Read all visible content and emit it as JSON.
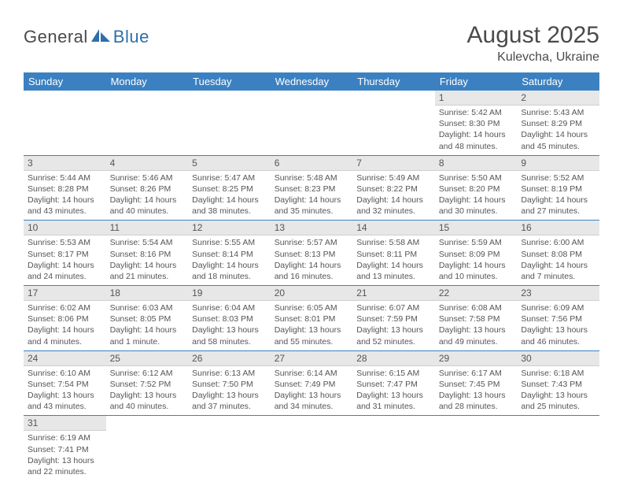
{
  "logo": {
    "part1": "General",
    "part2": "Blue"
  },
  "title": "August 2025",
  "location": "Kulevcha, Ukraine",
  "colors": {
    "header_bg": "#3b81c2",
    "header_fg": "#ffffff",
    "daynum_bg": "#e7e7e7",
    "cell_border": "#3b81c2",
    "text": "#555555",
    "logo_gray": "#4a4a4a",
    "logo_blue": "#2f6fa8"
  },
  "weekdays": [
    "Sunday",
    "Monday",
    "Tuesday",
    "Wednesday",
    "Thursday",
    "Friday",
    "Saturday"
  ],
  "weeks": [
    [
      {
        "empty": true
      },
      {
        "empty": true
      },
      {
        "empty": true
      },
      {
        "empty": true
      },
      {
        "empty": true
      },
      {
        "day": "1",
        "sunrise": "Sunrise: 5:42 AM",
        "sunset": "Sunset: 8:30 PM",
        "daylight": "Daylight: 14 hours and 48 minutes."
      },
      {
        "day": "2",
        "sunrise": "Sunrise: 5:43 AM",
        "sunset": "Sunset: 8:29 PM",
        "daylight": "Daylight: 14 hours and 45 minutes."
      }
    ],
    [
      {
        "day": "3",
        "sunrise": "Sunrise: 5:44 AM",
        "sunset": "Sunset: 8:28 PM",
        "daylight": "Daylight: 14 hours and 43 minutes."
      },
      {
        "day": "4",
        "sunrise": "Sunrise: 5:46 AM",
        "sunset": "Sunset: 8:26 PM",
        "daylight": "Daylight: 14 hours and 40 minutes."
      },
      {
        "day": "5",
        "sunrise": "Sunrise: 5:47 AM",
        "sunset": "Sunset: 8:25 PM",
        "daylight": "Daylight: 14 hours and 38 minutes."
      },
      {
        "day": "6",
        "sunrise": "Sunrise: 5:48 AM",
        "sunset": "Sunset: 8:23 PM",
        "daylight": "Daylight: 14 hours and 35 minutes."
      },
      {
        "day": "7",
        "sunrise": "Sunrise: 5:49 AM",
        "sunset": "Sunset: 8:22 PM",
        "daylight": "Daylight: 14 hours and 32 minutes."
      },
      {
        "day": "8",
        "sunrise": "Sunrise: 5:50 AM",
        "sunset": "Sunset: 8:20 PM",
        "daylight": "Daylight: 14 hours and 30 minutes."
      },
      {
        "day": "9",
        "sunrise": "Sunrise: 5:52 AM",
        "sunset": "Sunset: 8:19 PM",
        "daylight": "Daylight: 14 hours and 27 minutes."
      }
    ],
    [
      {
        "day": "10",
        "sunrise": "Sunrise: 5:53 AM",
        "sunset": "Sunset: 8:17 PM",
        "daylight": "Daylight: 14 hours and 24 minutes."
      },
      {
        "day": "11",
        "sunrise": "Sunrise: 5:54 AM",
        "sunset": "Sunset: 8:16 PM",
        "daylight": "Daylight: 14 hours and 21 minutes."
      },
      {
        "day": "12",
        "sunrise": "Sunrise: 5:55 AM",
        "sunset": "Sunset: 8:14 PM",
        "daylight": "Daylight: 14 hours and 18 minutes."
      },
      {
        "day": "13",
        "sunrise": "Sunrise: 5:57 AM",
        "sunset": "Sunset: 8:13 PM",
        "daylight": "Daylight: 14 hours and 16 minutes."
      },
      {
        "day": "14",
        "sunrise": "Sunrise: 5:58 AM",
        "sunset": "Sunset: 8:11 PM",
        "daylight": "Daylight: 14 hours and 13 minutes."
      },
      {
        "day": "15",
        "sunrise": "Sunrise: 5:59 AM",
        "sunset": "Sunset: 8:09 PM",
        "daylight": "Daylight: 14 hours and 10 minutes."
      },
      {
        "day": "16",
        "sunrise": "Sunrise: 6:00 AM",
        "sunset": "Sunset: 8:08 PM",
        "daylight": "Daylight: 14 hours and 7 minutes."
      }
    ],
    [
      {
        "day": "17",
        "sunrise": "Sunrise: 6:02 AM",
        "sunset": "Sunset: 8:06 PM",
        "daylight": "Daylight: 14 hours and 4 minutes."
      },
      {
        "day": "18",
        "sunrise": "Sunrise: 6:03 AM",
        "sunset": "Sunset: 8:05 PM",
        "daylight": "Daylight: 14 hours and 1 minute."
      },
      {
        "day": "19",
        "sunrise": "Sunrise: 6:04 AM",
        "sunset": "Sunset: 8:03 PM",
        "daylight": "Daylight: 13 hours and 58 minutes."
      },
      {
        "day": "20",
        "sunrise": "Sunrise: 6:05 AM",
        "sunset": "Sunset: 8:01 PM",
        "daylight": "Daylight: 13 hours and 55 minutes."
      },
      {
        "day": "21",
        "sunrise": "Sunrise: 6:07 AM",
        "sunset": "Sunset: 7:59 PM",
        "daylight": "Daylight: 13 hours and 52 minutes."
      },
      {
        "day": "22",
        "sunrise": "Sunrise: 6:08 AM",
        "sunset": "Sunset: 7:58 PM",
        "daylight": "Daylight: 13 hours and 49 minutes."
      },
      {
        "day": "23",
        "sunrise": "Sunrise: 6:09 AM",
        "sunset": "Sunset: 7:56 PM",
        "daylight": "Daylight: 13 hours and 46 minutes."
      }
    ],
    [
      {
        "day": "24",
        "sunrise": "Sunrise: 6:10 AM",
        "sunset": "Sunset: 7:54 PM",
        "daylight": "Daylight: 13 hours and 43 minutes."
      },
      {
        "day": "25",
        "sunrise": "Sunrise: 6:12 AM",
        "sunset": "Sunset: 7:52 PM",
        "daylight": "Daylight: 13 hours and 40 minutes."
      },
      {
        "day": "26",
        "sunrise": "Sunrise: 6:13 AM",
        "sunset": "Sunset: 7:50 PM",
        "daylight": "Daylight: 13 hours and 37 minutes."
      },
      {
        "day": "27",
        "sunrise": "Sunrise: 6:14 AM",
        "sunset": "Sunset: 7:49 PM",
        "daylight": "Daylight: 13 hours and 34 minutes."
      },
      {
        "day": "28",
        "sunrise": "Sunrise: 6:15 AM",
        "sunset": "Sunset: 7:47 PM",
        "daylight": "Daylight: 13 hours and 31 minutes."
      },
      {
        "day": "29",
        "sunrise": "Sunrise: 6:17 AM",
        "sunset": "Sunset: 7:45 PM",
        "daylight": "Daylight: 13 hours and 28 minutes."
      },
      {
        "day": "30",
        "sunrise": "Sunrise: 6:18 AM",
        "sunset": "Sunset: 7:43 PM",
        "daylight": "Daylight: 13 hours and 25 minutes."
      }
    ],
    [
      {
        "day": "31",
        "sunrise": "Sunrise: 6:19 AM",
        "sunset": "Sunset: 7:41 PM",
        "daylight": "Daylight: 13 hours and 22 minutes."
      },
      {
        "empty": true
      },
      {
        "empty": true
      },
      {
        "empty": true
      },
      {
        "empty": true
      },
      {
        "empty": true
      },
      {
        "empty": true
      }
    ]
  ]
}
